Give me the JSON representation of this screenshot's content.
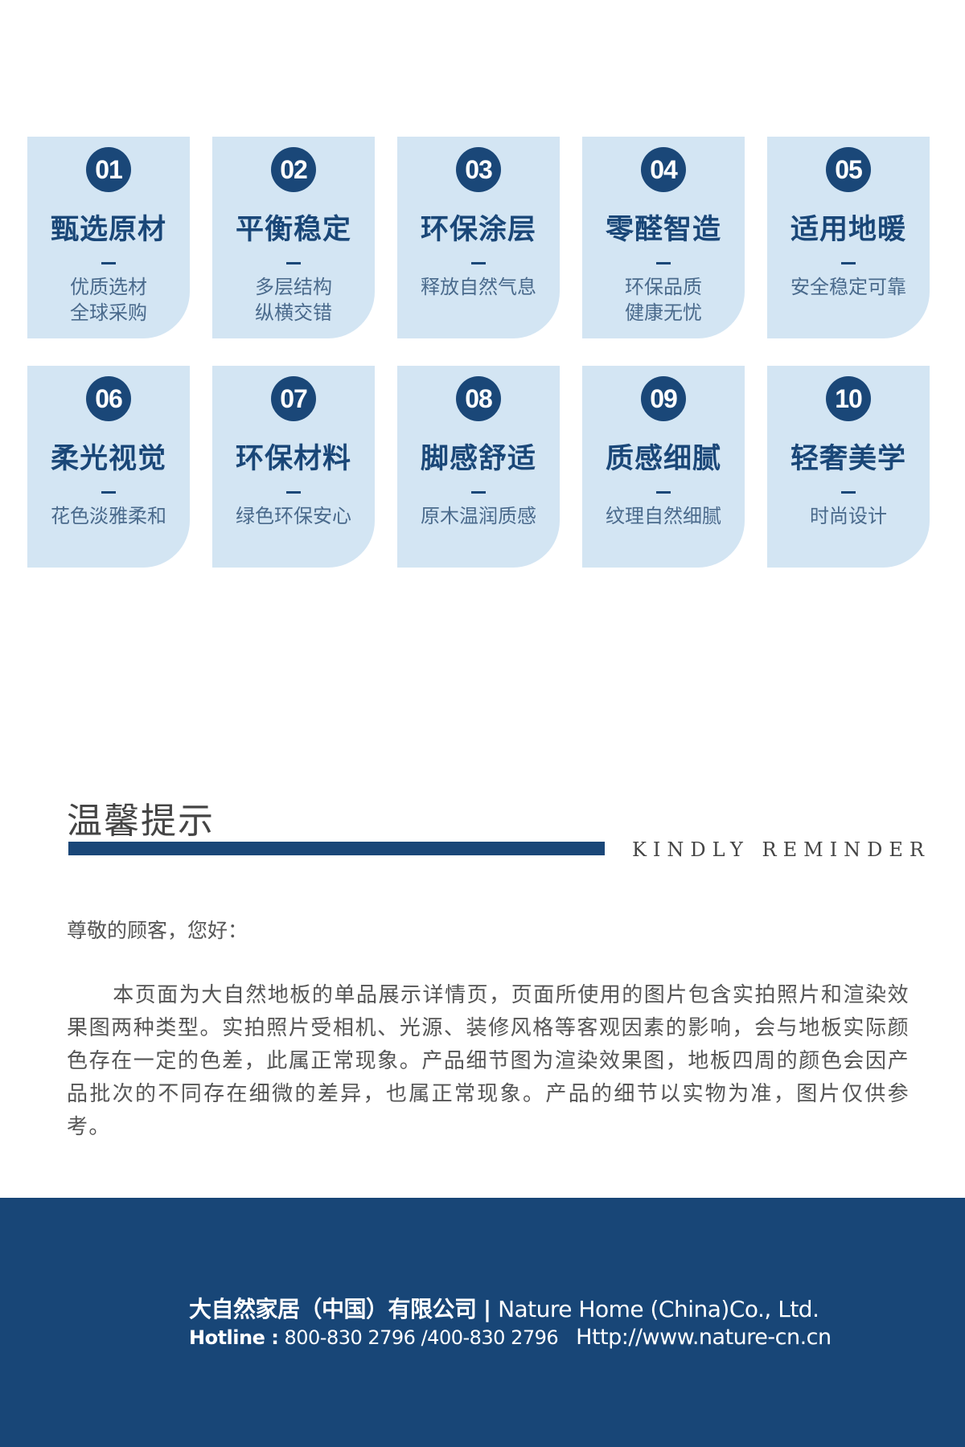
{
  "features": [
    {
      "num": "01",
      "title": "甄选原材",
      "lines": [
        "优质选材",
        "全球采购"
      ]
    },
    {
      "num": "02",
      "title": "平衡稳定",
      "lines": [
        "多层结构",
        "纵横交错"
      ]
    },
    {
      "num": "03",
      "title": "环保涂层",
      "lines": [
        "释放自然气息"
      ]
    },
    {
      "num": "04",
      "title": "零醛智造",
      "lines": [
        "环保品质",
        "健康无忧"
      ]
    },
    {
      "num": "05",
      "title": "适用地暖",
      "lines": [
        "安全稳定可靠"
      ]
    },
    {
      "num": "06",
      "title": "柔光视觉",
      "lines": [
        "花色淡雅柔和"
      ]
    },
    {
      "num": "07",
      "title": "环保材料",
      "lines": [
        "绿色环保安心"
      ]
    },
    {
      "num": "08",
      "title": "脚感舒适",
      "lines": [
        "原木温润质感"
      ]
    },
    {
      "num": "09",
      "title": "质感细腻",
      "lines": [
        "纹理自然细腻"
      ]
    },
    {
      "num": "10",
      "title": "轻奢美学",
      "lines": [
        "时尚设计"
      ]
    }
  ],
  "reminder": {
    "title": "温馨提示",
    "subtitle": "KINDLY REMINDER",
    "greeting": "尊敬的顾客，您好：",
    "body": "本页面为大自然地板的单品展示详情页，页面所使用的图片包含实拍照片和渲染效果图两种类型。实拍照片受相机、光源、装修风格等客观因素的影响，会与地板实际颜色存在一定的色差，此属正常现象。产品细节图为渲染效果图，地板四周的颜色会因产品批次的不同存在细微的差异，也属正常现象。产品的细节以实物为准，图片仅供参考。"
  },
  "footer": {
    "company_cn": "大自然家居（中国）有限公司",
    "separator": "|",
    "company_en": "Nature Home (China)Co., Ltd.",
    "hotline_label": "Hotline :",
    "hotline": "800-830 2796 /400-830 2796",
    "url": "Http://www.nature-cn.cn"
  },
  "colors": {
    "brand": "#1a4778",
    "card": "#d3e5f3",
    "footer": "#184677"
  }
}
